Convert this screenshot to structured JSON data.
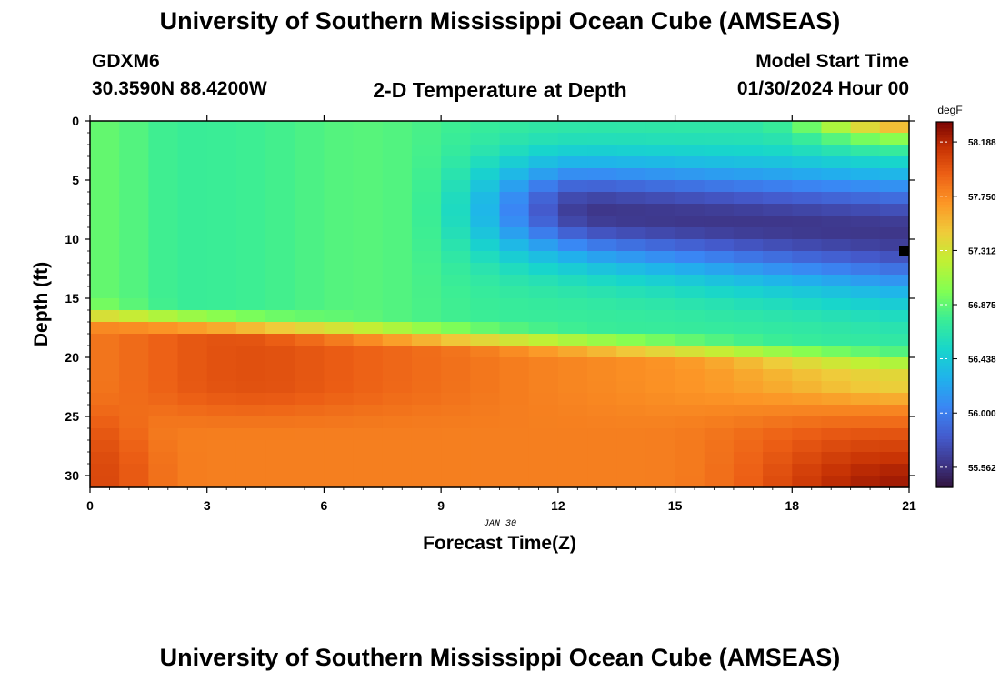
{
  "header": {
    "title": "University of Southern Mississippi Ocean Cube (AMSEAS)",
    "station_id": "GDXM6",
    "coordinates": "30.3590N  88.4200W",
    "plot_title": "2-D Temperature at Depth",
    "start_label": "Model Start Time",
    "start_value": "01/30/2024 Hour 00"
  },
  "footer": {
    "title": "University of Southern Mississippi Ocean Cube (AMSEAS)"
  },
  "chart_data": {
    "type": "heatmap",
    "title": "2-D Temperature at Depth",
    "xlabel": "Forecast Time(Z)",
    "ylabel": "Depth (ft)",
    "date_label": "JAN 30",
    "xlim": [
      0,
      21
    ],
    "ylim": [
      0,
      31
    ],
    "y_inverted": true,
    "x_ticks": [
      0,
      3,
      6,
      9,
      12,
      15,
      18,
      21
    ],
    "y_ticks": [
      0,
      5,
      10,
      15,
      20,
      25,
      30
    ],
    "x_tick_labels": [
      "0",
      "3",
      "6",
      "9",
      "12",
      "15",
      "18",
      "21"
    ],
    "y_tick_labels": [
      "0",
      "5",
      "10",
      "15",
      "20",
      "25",
      "30"
    ],
    "colorbar": {
      "unit": "degF",
      "min": 55.4,
      "max": 58.35,
      "tick_values": [
        58.188,
        57.75,
        57.312,
        56.875,
        56.438,
        56.0,
        55.562
      ],
      "tick_labels": [
        "58.188",
        "57.750",
        "57.312",
        "56.875",
        "56.438",
        "56.000",
        "55.562"
      ]
    },
    "grid": {
      "x_step_hours": 0.75,
      "depth_step_ft": 1
    },
    "temperature_field_summary": [
      {
        "feature": "surface layer 0-15 ft, hours 0-9",
        "temp_range": [
          56.6,
          57.0
        ]
      },
      {
        "feature": "cold core 5-13 ft, hours 13-21",
        "temp_range": [
          55.5,
          55.9
        ]
      },
      {
        "feature": "warm layer 18-22 ft, hours 2-6",
        "temp_range": [
          57.9,
          58.1
        ]
      },
      {
        "feature": "bottom 26-31 ft, hours 18-21",
        "temp_range": [
          58.1,
          58.3
        ]
      },
      {
        "feature": "surface 0-1 ft, hour 21",
        "temp_range": [
          57.8,
          58.0
        ]
      }
    ]
  }
}
